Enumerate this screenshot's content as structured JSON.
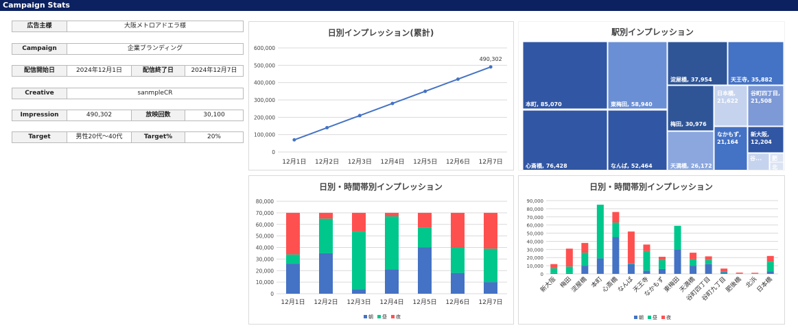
{
  "header": {
    "title": "Campaign Stats"
  },
  "info": {
    "advertiser_label": "広告主様",
    "advertiser": "大阪メトロアドエラ様",
    "campaign_label": "Campaign",
    "campaign": "企業ブランディング",
    "start_label": "配信開始日",
    "start": "2024年12月1日",
    "end_label": "配信終了日",
    "end": "2024年12月7日",
    "creative_label": "Creative",
    "creative": "sanmpleCR",
    "impression_label": "Impression",
    "impression": "490,302",
    "plays_label": "放映回数",
    "plays": "30,100",
    "target_label": "Target",
    "target": "男性20代～40代",
    "target_pct_label": "Target%",
    "target_pct": "20%"
  },
  "chart_data": [
    {
      "type": "line",
      "title": "日別インプレッション(累計)",
      "categories": [
        "12月1日",
        "12月2日",
        "12月3日",
        "12月4日",
        "12月5日",
        "12月6日",
        "12月7日"
      ],
      "values": [
        70000,
        140000,
        210000,
        280000,
        350000,
        420000,
        490302
      ],
      "last_label": "490,302",
      "ylim": [
        0,
        600000
      ],
      "yticks": [
        "0",
        "100,000",
        "200,000",
        "300,000",
        "400,000",
        "500,000",
        "600,000"
      ],
      "color": "#4472c4"
    },
    {
      "type": "treemap",
      "title": "駅別インプレッション",
      "items": [
        {
          "name": "本町",
          "value": 85070,
          "label": "本町, 85,070"
        },
        {
          "name": "心斎橋",
          "value": 76428,
          "label": "心斎橋, 76,428"
        },
        {
          "name": "東梅田",
          "value": 58940,
          "label": "東梅田, 58,940"
        },
        {
          "name": "なんば",
          "value": 52464,
          "label": "なんば, 52,464"
        },
        {
          "name": "淀屋橋",
          "value": 37954,
          "label": "淀屋橋, 37,954"
        },
        {
          "name": "天王寺",
          "value": 35882,
          "label": "天王寺, 35,882"
        },
        {
          "name": "梅田",
          "value": 30976,
          "label": "梅田, 30,976"
        },
        {
          "name": "天満橋",
          "value": 26172,
          "label": "天満橋, 26,172"
        },
        {
          "name": "日本橋",
          "value": 21622,
          "label": "日本橋, 21,622"
        },
        {
          "name": "谷町四丁目",
          "value": 21508,
          "label": "谷町四丁目, 21,508"
        },
        {
          "name": "なかもず",
          "value": 21164,
          "label": "なかもず, 21,164"
        },
        {
          "name": "新大阪",
          "value": 12204,
          "label": "新大阪, 12,204"
        },
        {
          "name": "谷町九丁目",
          "value": 0,
          "label": "谷..."
        },
        {
          "name": "肥後橋",
          "value": 0,
          "label": "肥"
        },
        {
          "name": "北浜",
          "value": 0,
          "label": "北"
        }
      ]
    },
    {
      "type": "stacked-bar",
      "title": "日別・時間帯別インプレッション",
      "categories": [
        "12月1日",
        "12月2日",
        "12月3日",
        "12月4日",
        "12月5日",
        "12月6日",
        "12月7日"
      ],
      "series": [
        {
          "name": "朝",
          "color": "#4472c4",
          "values": [
            26000,
            35000,
            4000,
            21000,
            40000,
            18000,
            10000
          ]
        },
        {
          "name": "昼",
          "color": "#00c78c",
          "values": [
            8000,
            30000,
            50000,
            46000,
            17000,
            22000,
            29000
          ]
        },
        {
          "name": "夜",
          "color": "#ff5050",
          "values": [
            36000,
            5000,
            16000,
            3000,
            13000,
            30000,
            31000
          ]
        }
      ],
      "ylim": [
        0,
        80000
      ],
      "yticks": [
        "0",
        "10,000",
        "20,000",
        "30,000",
        "40,000",
        "50,000",
        "60,000",
        "70,000",
        "80,000"
      ]
    },
    {
      "type": "stacked-bar",
      "title": "日別・時間帯別インプレッション",
      "categories": [
        "新大阪",
        "梅田",
        "淀屋橋",
        "本町",
        "心斎橋",
        "なんば",
        "天王寺",
        "なかもず",
        "東梅田",
        "天満橋",
        "谷町四丁目",
        "谷町九丁目",
        "肥後橋",
        "北浜",
        "日本橋"
      ],
      "series": [
        {
          "name": "朝",
          "color": "#4472c4",
          "values": [
            1000,
            1000,
            10000,
            19000,
            45000,
            12000,
            4000,
            6000,
            30000,
            10000,
            12000,
            2000,
            300,
            300,
            3000
          ]
        },
        {
          "name": "昼",
          "color": "#00c78c",
          "values": [
            6000,
            8000,
            16000,
            66000,
            18000,
            1000,
            24000,
            11000,
            29000,
            8000,
            5000,
            1000,
            200,
            200,
            12000
          ]
        },
        {
          "name": "夜",
          "color": "#ff5050",
          "values": [
            5000,
            22000,
            12000,
            0,
            13000,
            39000,
            8000,
            4000,
            0,
            8000,
            4500,
            3500,
            1000,
            800,
            7000
          ]
        }
      ],
      "ylim": [
        0,
        90000
      ],
      "yticks": [
        "0",
        "10,000",
        "20,000",
        "30,000",
        "40,000",
        "50,000",
        "60,000",
        "70,000",
        "80,000",
        "90,000"
      ]
    }
  ]
}
